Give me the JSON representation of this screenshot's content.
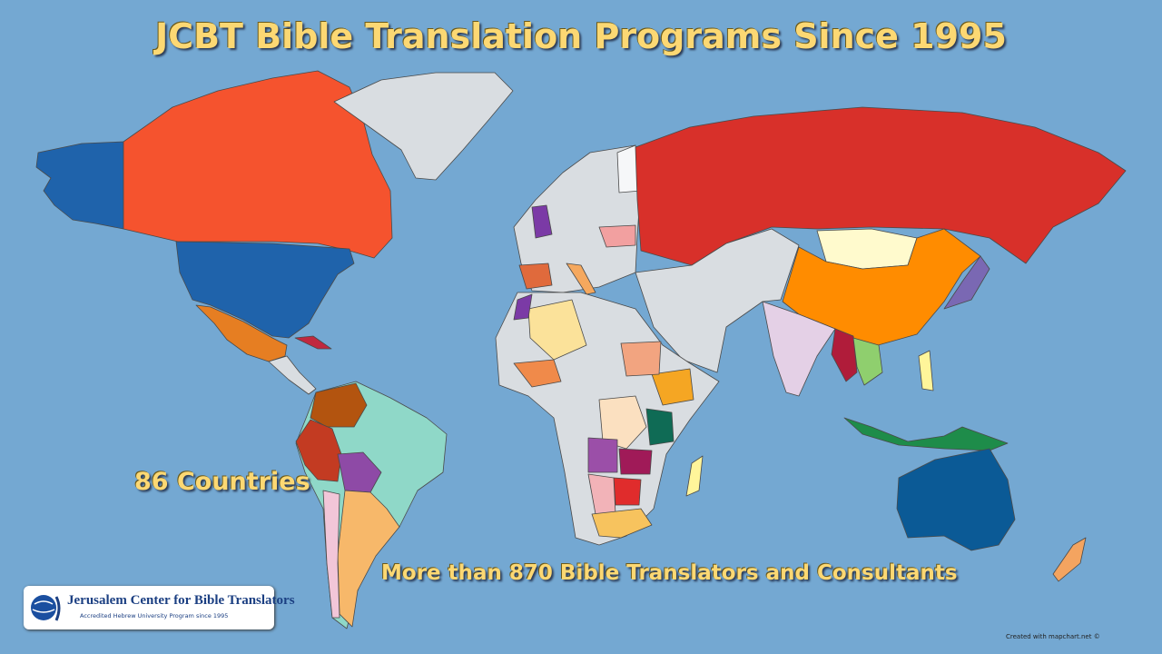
{
  "header": {
    "title": "JCBT Bible Translation Programs Since 1995"
  },
  "annotations": {
    "countries": "86 Countries",
    "translators": "More than 870 Bible Translators and Consultants"
  },
  "logo": {
    "name": "Jerusalem Center for Bible Translators",
    "subtitle": "Accredited Hebrew University Program since 1995"
  },
  "footer": {
    "credit": "Created with mapchart.net ©"
  }
}
